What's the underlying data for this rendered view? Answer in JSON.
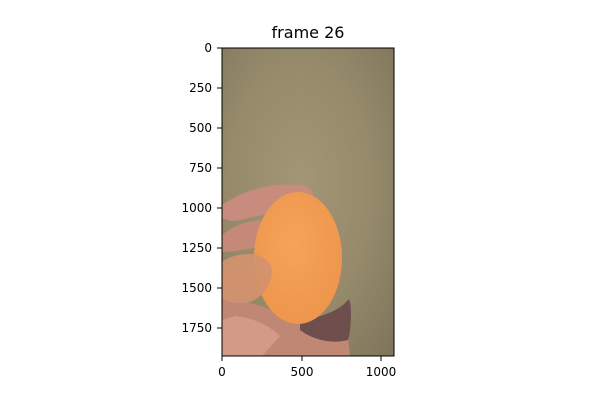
{
  "title": "frame 26",
  "image": {
    "description_icon": "photo-of-hand-holding-orange-oval-mask",
    "colors": {
      "background_floor": "#9b8e70",
      "mask_fill": "#f29d52",
      "skin": "#c98f82",
      "finger_shadow": "#7d5a53"
    }
  },
  "axes": {
    "x_ticks": [
      "0",
      "500",
      "1000"
    ],
    "y_ticks": [
      "0",
      "250",
      "500",
      "750",
      "1000",
      "1250",
      "1500",
      "1750"
    ]
  }
}
